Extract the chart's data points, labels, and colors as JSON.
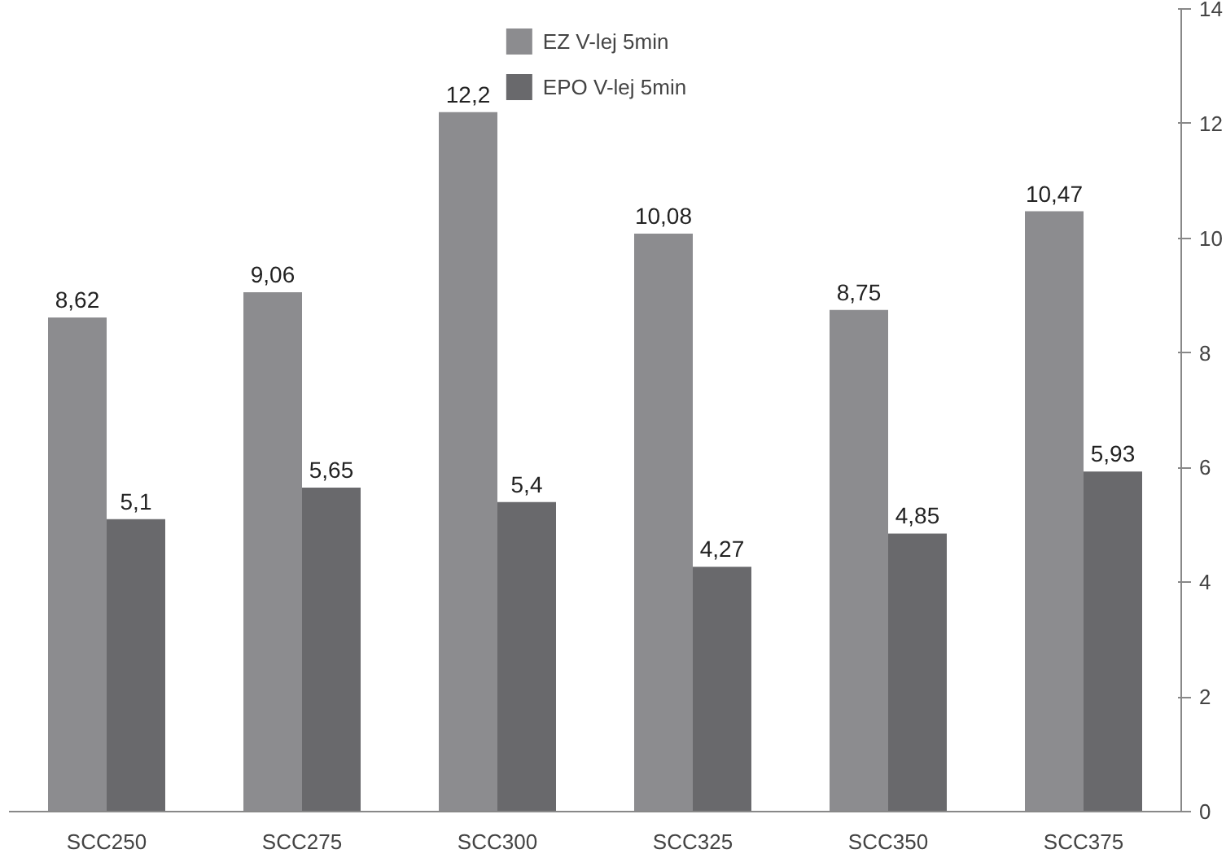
{
  "chart_data": {
    "type": "bar",
    "categories": [
      "SCC250",
      "SCC275",
      "SCC300",
      "SCC325",
      "SCC350",
      "SCC375"
    ],
    "series": [
      {
        "name": "EZ V-lej 5min",
        "color": "#8c8c8f",
        "values": [
          8.62,
          9.06,
          12.2,
          10.08,
          8.75,
          10.47
        ],
        "value_labels": [
          "8,62",
          "9,06",
          "12,2",
          "10,08",
          "8,75",
          "10,47"
        ]
      },
      {
        "name": "EPO V-lej 5min",
        "color": "#69696c",
        "values": [
          5.1,
          5.65,
          5.4,
          4.27,
          4.85,
          5.93
        ],
        "value_labels": [
          "5,1",
          "5,65",
          "5,4",
          "4,27",
          "4,85",
          "5,93"
        ]
      }
    ],
    "ylim": [
      0,
      14
    ],
    "yticks": [
      0,
      2,
      4,
      6,
      8,
      10,
      12,
      14
    ],
    "grid": false,
    "legend": "top"
  }
}
